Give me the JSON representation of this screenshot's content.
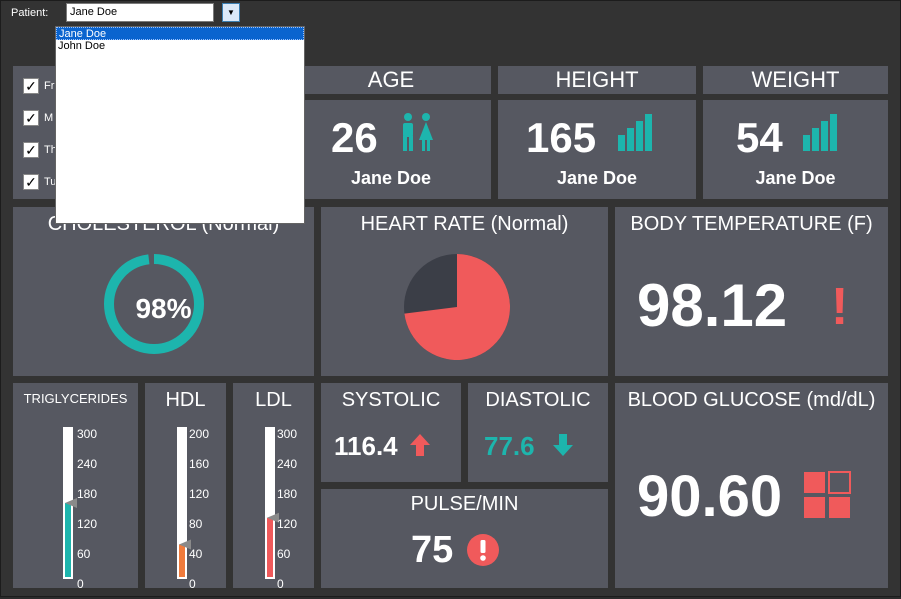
{
  "patient": {
    "label": "Patient:",
    "selected": "Jane Doe",
    "options": [
      "Jane Doe",
      "John Doe"
    ],
    "arrow": "▼"
  },
  "filters": {
    "items": [
      {
        "label": "Fr",
        "checked": true
      },
      {
        "label": "M",
        "checked": true
      },
      {
        "label": "Th",
        "checked": true
      },
      {
        "label": "Tu",
        "checked": true
      }
    ]
  },
  "age": {
    "title": "AGE",
    "value": "26",
    "name": "Jane Doe",
    "icon": "people-icon"
  },
  "height": {
    "title": "HEIGHT",
    "value": "165",
    "name": "Jane Doe",
    "icon": "bars-icon"
  },
  "weight": {
    "title": "WEIGHT",
    "value": "54",
    "name": "Jane Doe",
    "icon": "bars-icon"
  },
  "cholesterol": {
    "title": "CHOLESTEROL (Normal)",
    "value": "98%",
    "percent": 98,
    "color": "#1db5ad"
  },
  "heart_rate": {
    "title": "HEART RATE (Normal)",
    "slice_fraction": 0.73,
    "color_main": "#f05a5b",
    "color_rest": "#3b3e47"
  },
  "body_temp": {
    "title": "BODY TEMPERATURE (F)",
    "value": "98.12",
    "alert": "!",
    "alert_color": "#f05a5b"
  },
  "triglycerides": {
    "title": "TRIGLYCERIDES",
    "scale": [
      "300",
      "240",
      "180",
      "120",
      "60",
      "0"
    ],
    "level_fraction": 0.5,
    "color": "#1db5ad"
  },
  "hdl": {
    "title": "HDL",
    "scale": [
      "200",
      "160",
      "120",
      "80",
      "40",
      "0"
    ],
    "level_fraction": 0.22,
    "color": "#f07b3c"
  },
  "ldl": {
    "title": "LDL",
    "scale": [
      "300",
      "240",
      "180",
      "120",
      "60",
      "0"
    ],
    "level_fraction": 0.4,
    "color": "#f05a5b"
  },
  "systolic": {
    "title": "SYSTOLIC",
    "value": "116.4",
    "trend": "up",
    "color": "#f05a5b"
  },
  "diastolic": {
    "title": "DIASTOLIC",
    "value": "77.6",
    "trend": "down",
    "color": "#1db5ad"
  },
  "pulse": {
    "title": "PULSE/MIN",
    "value": "75",
    "alert": "!",
    "alert_color": "#f05a5b"
  },
  "glucose": {
    "title": "BLOOD GLUCOSE (md/dL)",
    "value": "90.60",
    "icon": "grid-squares-icon",
    "color": "#f05a5b"
  }
}
